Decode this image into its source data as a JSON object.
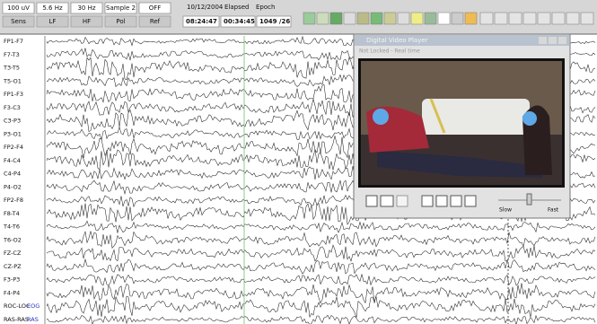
{
  "toolbar": {
    "fields": [
      {
        "top": "100 uV",
        "bottom": "Sens"
      },
      {
        "top": "5.6 Hz",
        "bottom": "LF"
      },
      {
        "top": "30 Hz",
        "bottom": "HF"
      },
      {
        "top": "Sample 2",
        "bottom": "Pol"
      },
      {
        "top": "OFF",
        "bottom": "Ref"
      }
    ],
    "clock": {
      "date": "10/12/2004",
      "time": "08:24:47",
      "elapsed_label": "Elapsed",
      "elapsed": "00:34:45",
      "epoch_label": "Epoch",
      "epoch": "1049 /26"
    }
  },
  "channels": [
    "FP1-F7",
    "F7-T3",
    "T3-T5",
    "T5-O1",
    "FP1-F3",
    "F3-C3",
    "C3-P3",
    "P3-O1",
    "FP2-F4",
    "F4-C4",
    "C4-P4",
    "P4-O2",
    "FP2-F8",
    "F8-T4",
    "T4-T6",
    "T6-O2",
    "FZ-CZ",
    "CZ-PZ",
    "F3-P3",
    "F4-P4",
    "ROC-LOC",
    "RAS-RAS"
  ],
  "channel_tags": {
    "20": "EOG",
    "21": "RAS"
  },
  "video_player": {
    "title": "Digital Video Player",
    "status": "Not Locked - Real time",
    "slow": "Slow",
    "fast": "Fast"
  }
}
